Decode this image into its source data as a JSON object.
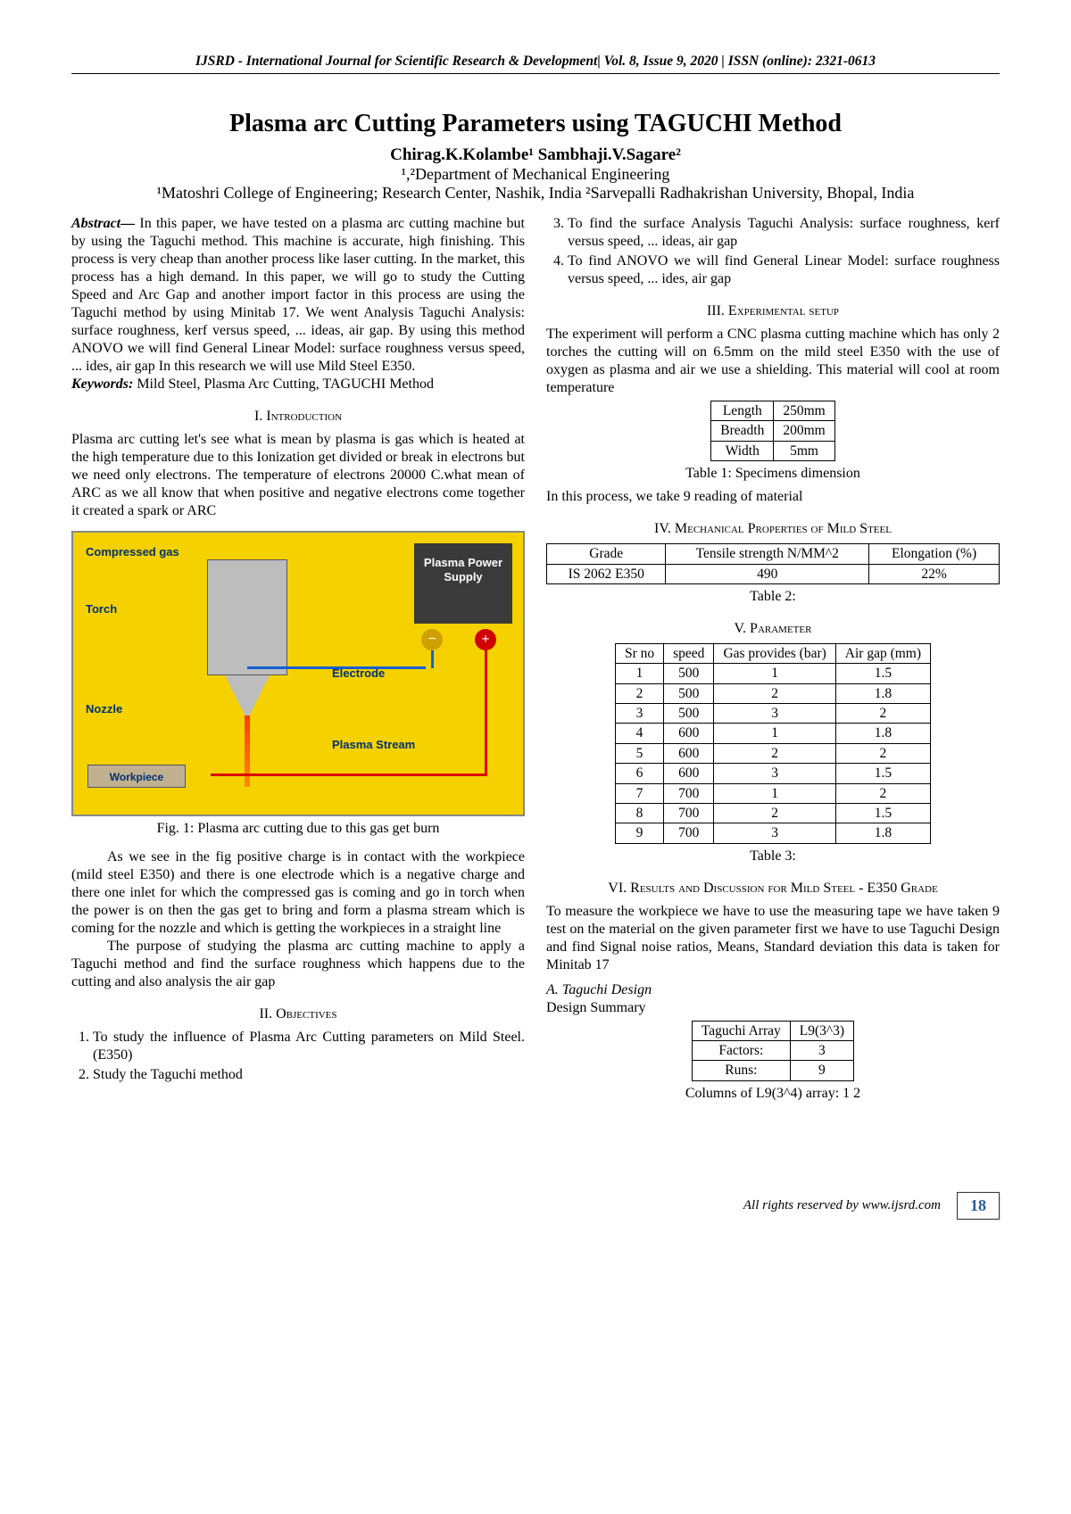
{
  "header": "IJSRD - International Journal for Scientific Research & Development| Vol. 8, Issue 9, 2020 | ISSN (online): 2321-0613",
  "title": "Plasma arc Cutting Parameters using TAGUCHI Method",
  "authors_html": "Chirag.K.Kolambe¹ Sambhaji.V.Sagare²",
  "affil1": "¹,²Department of Mechanical Engineering",
  "affil2": "¹Matoshri College of Engineering; Research Center, Nashik, India ²Sarvepalli Radhakrishan University, Bhopal, India",
  "abstract_label": "Abstract—",
  "abstract": " In this paper, we have tested on a plasma arc cutting machine but by using the Taguchi method. This machine is accurate, high finishing. This process is very cheap than another process like laser cutting. In the market, this process has a high demand. In this paper, we will go to study the Cutting Speed and Arc Gap and another import factor in this process are using the Taguchi method by using Minitab 17. We went Analysis Taguchi Analysis: surface roughness, kerf versus speed, ... ideas, air gap. By using this method ANOVO we will find General Linear Model: surface roughness versus speed, ... ides, air gap In this research we will use  Mild Steel E350.",
  "keywords_label": "Keywords:",
  "keywords": " Mild Steel, Plasma Arc Cutting, TAGUCHI Method",
  "sec1": "I.   Introduction",
  "intro_p1": "Plasma arc cutting let's see what is mean by plasma is gas which is heated at the high temperature due to this Ionization get divided or break in electrons but we need only electrons. The temperature of electrons 20000 C.what mean of ARC as we all know that when positive and negative electrons come together it created a spark or ARC",
  "fig1_caption": "Fig. 1: Plasma arc cutting due to this gas get burn",
  "intro_p2": "As we see in the fig positive charge is in contact with the workpiece (mild steel E350) and there is one electrode which is a negative charge and there one inlet for which the compressed gas is coming and go in torch when the power is on then the gas get to bring and form a plasma stream which is coming for the nozzle and which is getting the workpieces in a straight line",
  "intro_p3": "The purpose of studying the plasma arc cutting machine to apply a Taguchi method and find the surface roughness which happens due to the cutting and also analysis the air gap",
  "sec2": "II.   Objectives",
  "objectives": [
    "To study the influence of Plasma Arc Cutting parameters on Mild Steel. (E350)",
    "Study the Taguchi method",
    "To find the surface Analysis Taguchi Analysis: surface roughness, kerf versus speed, ... ideas, air gap",
    "To find ANOVO we will find General Linear Model: surface roughness versus speed, ... ides, air gap"
  ],
  "sec3": "III.   Experimental setup",
  "exp_p1": "The experiment will perform a CNC plasma cutting machine which has only 2 torches the cutting will on 6.5mm on the mild steel E350 with the use of oxygen as plasma and air we use a shielding. This material will cool at room temperature",
  "table1": {
    "rows": [
      [
        "Length",
        "250mm"
      ],
      [
        "Breadth",
        "200mm"
      ],
      [
        "Width",
        "5mm"
      ]
    ],
    "caption": "Table 1: Specimens dimension"
  },
  "exp_p2": "In this process, we take 9 reading of material",
  "sec4": "IV.   Mechanical Properties of Mild Steel",
  "table2": {
    "headers": [
      "Grade",
      "Tensile strength N/MM^2",
      "Elongation (%)"
    ],
    "rows": [
      [
        "IS 2062 E350",
        "490",
        "22%"
      ]
    ],
    "caption": "Table 2:"
  },
  "sec5": "V.   Parameter",
  "table3": {
    "headers": [
      "Sr no",
      "speed",
      "Gas provides (bar)",
      "Air gap (mm)"
    ],
    "rows": [
      [
        "1",
        "500",
        "1",
        "1.5"
      ],
      [
        "2",
        "500",
        "2",
        "1.8"
      ],
      [
        "3",
        "500",
        "3",
        "2"
      ],
      [
        "4",
        "600",
        "1",
        "1.8"
      ],
      [
        "5",
        "600",
        "2",
        "2"
      ],
      [
        "6",
        "600",
        "3",
        "1.5"
      ],
      [
        "7",
        "700",
        "1",
        "2"
      ],
      [
        "8",
        "700",
        "2",
        "1.5"
      ],
      [
        "9",
        "700",
        "3",
        "1.8"
      ]
    ],
    "caption": "Table 3:"
  },
  "sec6": "VI.   Results and Discussion for Mild Steel - E350 Grade",
  "res_p1": "To measure the workpiece we have to use the measuring tape we have taken 9 test on the material on the given parameter first we have to use Taguchi Design and find Signal noise ratios, Means, Standard deviation this data is taken for Minitab 17",
  "subsecA": "A.   Taguchi Design",
  "design_summary": "Design Summary",
  "table4": {
    "rows": [
      [
        "Taguchi Array",
        "L9(3^3)"
      ],
      [
        "Factors:",
        "3"
      ],
      [
        "Runs:",
        "9"
      ]
    ],
    "caption": "Columns of L9(3^4) array: 1 2"
  },
  "diagram_labels": {
    "compressed_gas": "Compressed gas",
    "torch": "Torch",
    "nozzle": "Nozzle",
    "workpiece": "Workpiece",
    "psu": "Plasma Power Supply",
    "electrode": "Electrode",
    "plasma_stream": "Plasma Stream",
    "colors": {
      "bg": "#f5d100",
      "psu": "#3a3a3a",
      "torch_body": "#bdbdbd",
      "wire_pos": "#d00000",
      "wire_neg": "#1560d0",
      "label": "#003070",
      "stream_top": "#ff3b00",
      "stream_bot": "#ff8a00"
    }
  },
  "footer_text": "All rights reserved by www.ijsrd.com",
  "page_num": "18"
}
